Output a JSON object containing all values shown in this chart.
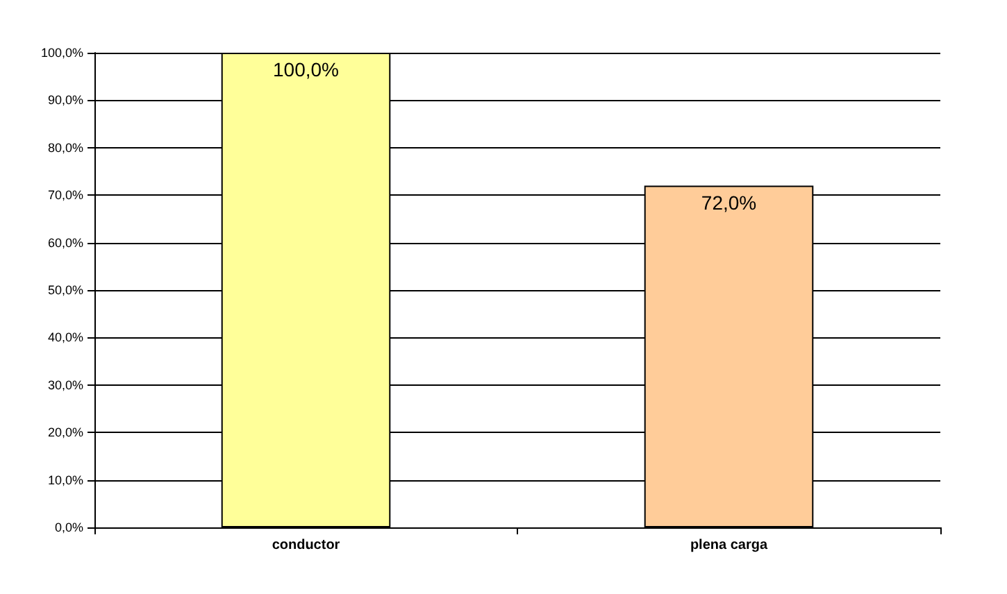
{
  "chart_data": {
    "type": "bar",
    "categories": [
      "conductor",
      "plena carga"
    ],
    "values": [
      100,
      72
    ],
    "colors": [
      "#ffff99",
      "#ffcc99"
    ],
    "value_labels": [
      "100,0%",
      "72,0%"
    ],
    "ylim": [
      0,
      100
    ],
    "yticks": [
      {
        "value": 0,
        "label": "0,0%"
      },
      {
        "value": 10,
        "label": "10,0%"
      },
      {
        "value": 20,
        "label": "20,0%"
      },
      {
        "value": 30,
        "label": "30,0%"
      },
      {
        "value": 40,
        "label": "40,0%"
      },
      {
        "value": 50,
        "label": "50,0%"
      },
      {
        "value": 60,
        "label": "60,0%"
      },
      {
        "value": 70,
        "label": "70,0%"
      },
      {
        "value": 80,
        "label": "80,0%"
      },
      {
        "value": 90,
        "label": "90,0%"
      },
      {
        "value": 100,
        "label": "100,0%"
      }
    ],
    "grid": true
  }
}
